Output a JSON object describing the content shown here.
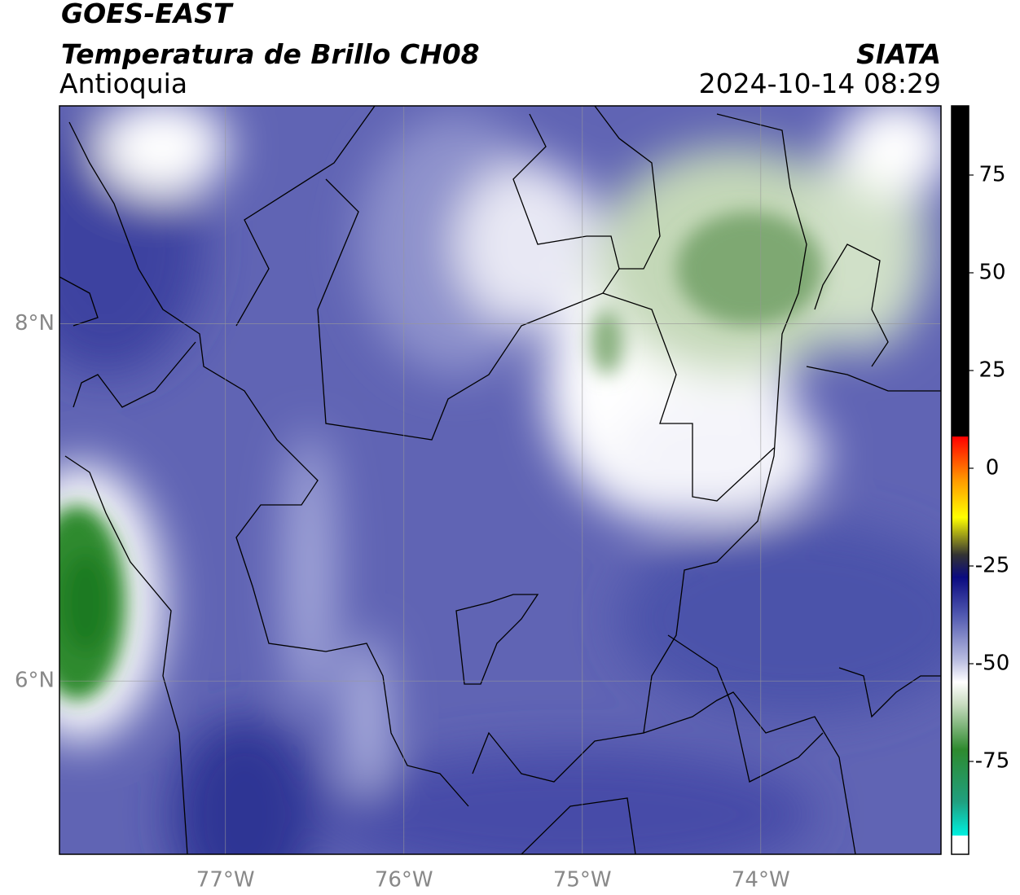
{
  "header": {
    "title": "GOES-EAST",
    "subtitle": "Temperatura de Brillo CH08",
    "region": "Antioquia",
    "source": "SIATA",
    "datetime": "2024-10-14 08:29"
  },
  "map": {
    "xlim": [
      -77.93,
      -72.99
    ],
    "ylim": [
      5.03,
      9.22
    ],
    "xticks": [
      {
        "value": -77,
        "label": "77°W"
      },
      {
        "value": -76,
        "label": "76°W"
      },
      {
        "value": -75,
        "label": "75°W"
      },
      {
        "value": -74,
        "label": "74°W"
      }
    ],
    "yticks": [
      {
        "value": 6,
        "label": "6°N"
      },
      {
        "value": 8,
        "label": "8°N"
      }
    ],
    "grid": true
  },
  "colorbar": {
    "range": [
      -98.75,
      92.7
    ],
    "ticks": [
      75,
      50,
      25,
      0,
      -25,
      -50,
      -75
    ]
  }
}
